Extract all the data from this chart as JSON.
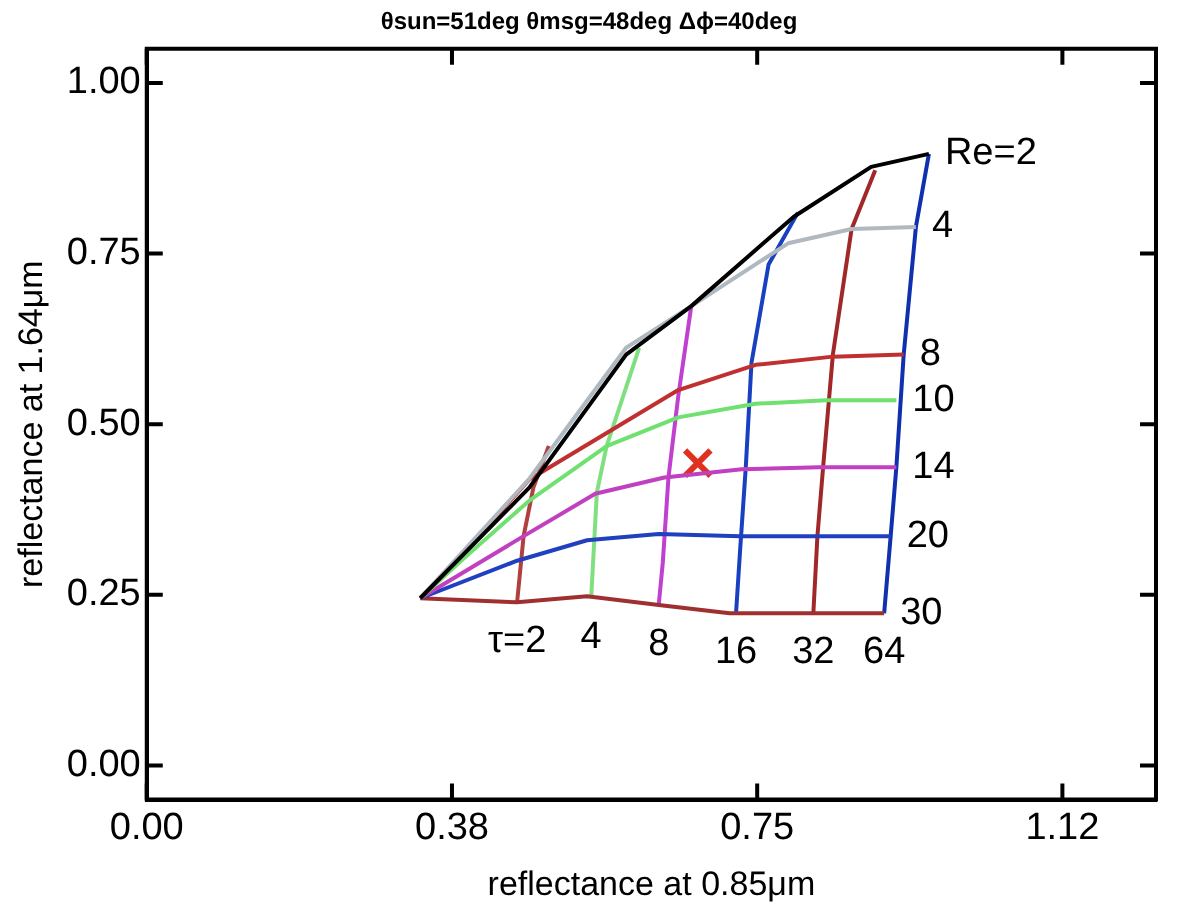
{
  "chart_data": {
    "type": "line",
    "title": "θsun=51deg θmsg=48deg Δϕ=40deg",
    "xlabel": "reflectance at 0.85μm",
    "ylabel": "reflectance at 1.64μm",
    "xlim": [
      0,
      1.24
    ],
    "ylim": [
      -0.05,
      1.05
    ],
    "xticks": [
      {
        "value": 0,
        "label": "0.00"
      },
      {
        "value": 0.375,
        "label": "0.38"
      },
      {
        "value": 0.75,
        "label": "0.75"
      },
      {
        "value": 1.125,
        "label": "1.12"
      }
    ],
    "yticks": [
      {
        "value": 0,
        "label": "0.00"
      },
      {
        "value": 0.25,
        "label": "0.25"
      },
      {
        "value": 0.5,
        "label": "0.50"
      },
      {
        "value": 0.75,
        "label": "0.75"
      },
      {
        "value": 1,
        "label": "1.00"
      }
    ],
    "grid": false,
    "legend": false,
    "marker": "none",
    "line_style": "solid",
    "series": [
      {
        "name": "Re=2",
        "color": "#000000",
        "x": [
          0.336,
          0.47,
          0.589,
          0.669,
          0.795,
          0.89,
          0.961
        ],
        "values": [
          0.245,
          0.407,
          0.602,
          0.673,
          0.804,
          0.877,
          0.896
        ]
      },
      {
        "name": "4",
        "color": "#b0b8c0",
        "x": [
          0.336,
          0.47,
          0.589,
          0.669,
          0.788,
          0.866,
          0.945
        ],
        "values": [
          0.245,
          0.42,
          0.612,
          0.673,
          0.765,
          0.786,
          0.789
        ]
      },
      {
        "name": "8",
        "color": "#c03030",
        "x": [
          0.336,
          0.392,
          0.47,
          0.653,
          0.748,
          0.843,
          0.93
        ],
        "values": [
          0.245,
          0.315,
          0.419,
          0.55,
          0.587,
          0.599,
          0.602
        ]
      },
      {
        "name": "10",
        "color": "#70e070",
        "x": [
          0.336,
          0.392,
          0.47,
          0.565,
          0.653,
          0.748,
          0.835,
          0.921
        ],
        "values": [
          0.245,
          0.306,
          0.388,
          0.468,
          0.51,
          0.53,
          0.535,
          0.535
        ]
      },
      {
        "name": "14",
        "color": "#c040c0",
        "x": [
          0.336,
          0.463,
          0.551,
          0.636,
          0.731,
          0.826,
          0.921
        ],
        "values": [
          0.245,
          0.336,
          0.398,
          0.422,
          0.434,
          0.437,
          0.437
        ]
      },
      {
        "name": "20",
        "color": "#2040c0",
        "x": [
          0.336,
          0.455,
          0.541,
          0.629,
          0.729,
          0.914
        ],
        "values": [
          0.245,
          0.3,
          0.33,
          0.339,
          0.336,
          0.336
        ]
      },
      {
        "name": "30",
        "color": "#a03030",
        "x": [
          0.336,
          0.455,
          0.541,
          0.629,
          0.716,
          0.819,
          0.906
        ],
        "values": [
          0.245,
          0.239,
          0.248,
          0.235,
          0.223,
          0.223,
          0.223
        ]
      },
      {
        "name": "τ=2",
        "color": "#b04040",
        "x": [
          0.494,
          0.475,
          0.463,
          0.455
        ],
        "values": [
          0.468,
          0.407,
          0.336,
          0.239
        ]
      },
      {
        "name": "4",
        "color": "#80e080",
        "x": [
          0.605,
          0.565,
          0.553,
          0.546
        ],
        "values": [
          0.612,
          0.468,
          0.4,
          0.245
        ]
      },
      {
        "name": "8",
        "color": "#c040d0",
        "x": [
          0.669,
          0.653,
          0.641,
          0.634,
          0.629
        ],
        "values": [
          0.673,
          0.541,
          0.422,
          0.297,
          0.235
        ]
      },
      {
        "name": "16",
        "color": "#1840c0",
        "x": [
          0.8,
          0.764,
          0.743,
          0.736,
          0.729,
          0.724
        ],
        "values": [
          0.81,
          0.734,
          0.59,
          0.437,
          0.315,
          0.223
        ]
      },
      {
        "name": "32",
        "color": "#a02828",
        "x": [
          0.895,
          0.866,
          0.843,
          0.831,
          0.824,
          0.819
        ],
        "values": [
          0.872,
          0.786,
          0.602,
          0.437,
          0.336,
          0.223
        ]
      },
      {
        "name": "64",
        "color": "#1030b0",
        "x": [
          0.961,
          0.945,
          0.93,
          0.921,
          0.914,
          0.906
        ],
        "values": [
          0.896,
          0.789,
          0.602,
          0.437,
          0.336,
          0.223
        ]
      },
      {
        "type": "scatter",
        "marker": "cross",
        "color": "#e03020",
        "x": [
          0.677
        ],
        "values": [
          0.443
        ]
      }
    ]
  }
}
